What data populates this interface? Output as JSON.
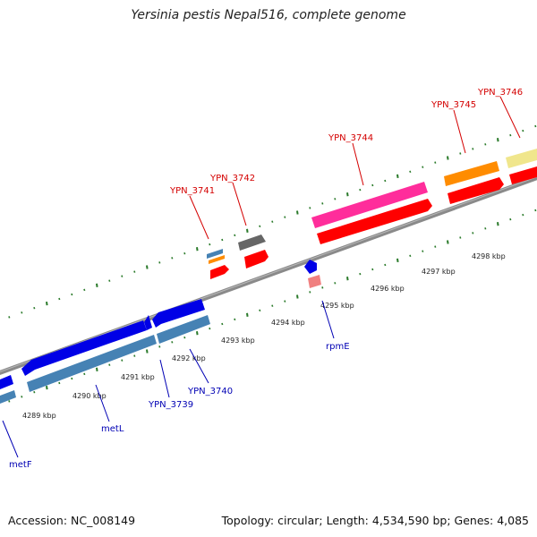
{
  "title": "Yersinia pestis Nepal516, complete genome",
  "footer": {
    "accession": "Accession: NC_008149",
    "stats": "Topology: circular; Length: 4,534,590 bp; Genes: 4,085"
  },
  "colors": {
    "backbone": "#8a8a8a",
    "tick": "#2a7a2a",
    "label_forward": "#d40000",
    "label_reverse": "#0000b4",
    "pink": "#ff2d9b",
    "red": "#ff0000",
    "orange": "#ff8c00",
    "khaki": "#f0e68c",
    "blue": "#0000e6",
    "steel": "#4682b4",
    "gray": "#666666",
    "salmon": "#f08080"
  },
  "scale_labels": [
    "4289 kbp",
    "4290 kbp",
    "4291 kbp",
    "4292 kbp",
    "4293 kbp",
    "4294 kbp",
    "4295 kbp",
    "4296 kbp",
    "4297 kbp",
    "4298 kbp"
  ],
  "gene_labels": {
    "ypn3741": "YPN_3741",
    "ypn3742": "YPN_3742",
    "ypn3744": "YPN_3744",
    "ypn3745": "YPN_3745",
    "ypn3746": "YPN_3746",
    "metf": "metF",
    "metl": "metL",
    "ypn3739": "YPN_3739",
    "ypn3740": "YPN_3740",
    "rpme": "rpmE"
  }
}
